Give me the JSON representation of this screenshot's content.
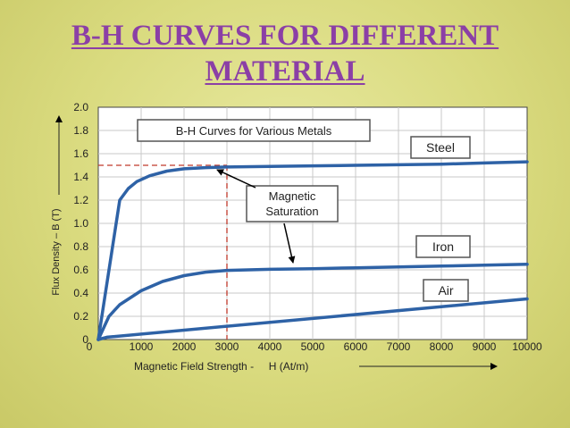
{
  "slide": {
    "title_line1": "B-H CURVES FOR DIFFERENT",
    "title_line2": "MATERIAL"
  },
  "colors": {
    "title": "#8b3fa6",
    "curve": "#2e62a6",
    "reference_line": "#c0392b",
    "plot_background": "#ffffff",
    "slide_background": "#d9da7e"
  },
  "chart_data": {
    "type": "line",
    "title": "B-H Curves for Various Metals",
    "xlabel": "Magnetic Field Strength -     H (At/m)",
    "ylabel": "Flux Density – B (T)",
    "xlim": [
      0,
      10000
    ],
    "ylim": [
      0,
      2.0
    ],
    "x_ticks": [
      0,
      1000,
      2000,
      3000,
      4000,
      5000,
      6000,
      7000,
      8000,
      9000,
      10000
    ],
    "x_tick_labels": [
      "0",
      "1000",
      "2000",
      "3000",
      "4000",
      "5000",
      "6000",
      "7000",
      "8000",
      "9000",
      "10000"
    ],
    "y_ticks": [
      0,
      0.2,
      0.4,
      0.6,
      0.8,
      1.0,
      1.2,
      1.4,
      1.6,
      1.8,
      2.0
    ],
    "y_tick_labels": [
      "0",
      "0.2",
      "0.4",
      "0.6",
      "0.8",
      "1.0",
      "1.2",
      "1.4",
      "1.6",
      "1.8",
      "2.0"
    ],
    "grid": true,
    "series": [
      {
        "name": "Steel",
        "x": [
          0,
          500,
          600,
          700,
          900,
          1200,
          1600,
          2000,
          2500,
          3000,
          4000,
          5000,
          6000,
          7000,
          8000,
          9000,
          10000
        ],
        "y": [
          0,
          1.2,
          1.25,
          1.3,
          1.36,
          1.41,
          1.45,
          1.47,
          1.48,
          1.485,
          1.49,
          1.495,
          1.5,
          1.505,
          1.51,
          1.52,
          1.53
        ]
      },
      {
        "name": "Iron",
        "x": [
          0,
          250,
          500,
          1000,
          1500,
          2000,
          2500,
          3000,
          3500,
          4000,
          5000,
          6000,
          7000,
          8000,
          9000,
          10000
        ],
        "y": [
          0,
          0.2,
          0.3,
          0.42,
          0.5,
          0.55,
          0.58,
          0.595,
          0.6,
          0.605,
          0.61,
          0.618,
          0.625,
          0.632,
          0.64,
          0.648
        ]
      },
      {
        "name": "Air",
        "x": [
          0,
          200,
          10000
        ],
        "y": [
          0,
          0.02,
          0.35
        ]
      }
    ],
    "reference": {
      "x": 3000,
      "y": 1.5
    },
    "annotation": {
      "text_line1": "Magnetic",
      "text_line2": "Saturation"
    }
  }
}
